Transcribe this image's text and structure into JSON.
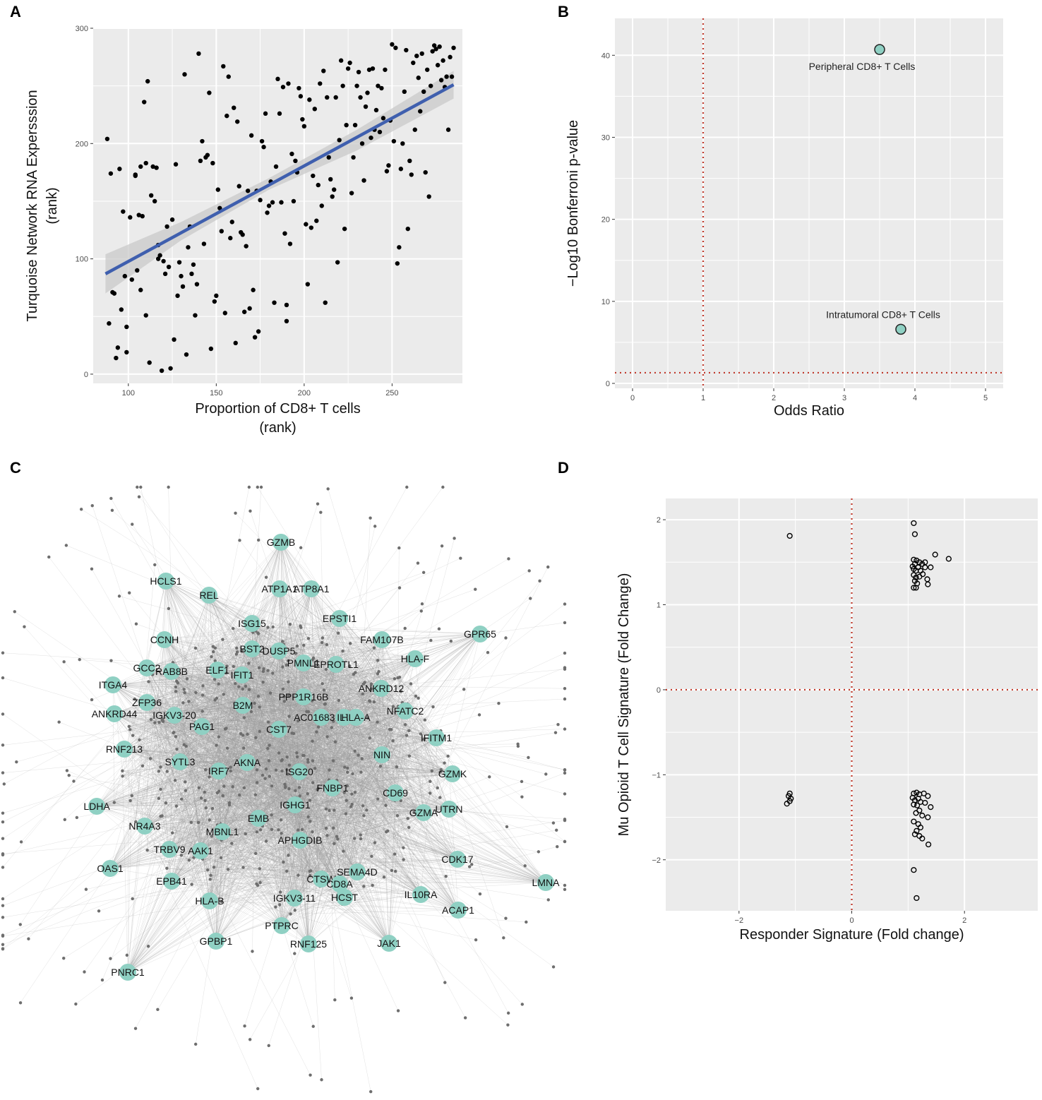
{
  "panel_labels": {
    "a": "A",
    "b": "B",
    "c": "C",
    "d": "D"
  },
  "colors": {
    "regression": "#3f5fae",
    "ci_band": "#c9c9c9",
    "node_fill": "#8fd0c3",
    "reference_line": "#c0392b",
    "edge": "#9a9a9a"
  },
  "chart_data": [
    {
      "id": "A",
      "type": "scatter",
      "xlabel": "Proportion of CD8+ T cells",
      "xlabel2": "(rank)",
      "ylabel": "Turquoise Network RNA Expersssion",
      "ylabel2": "(rank)",
      "xlim": [
        80,
        290
      ],
      "ylim": [
        -8,
        300
      ],
      "xticks": [
        100,
        150,
        200,
        250
      ],
      "yticks": [
        0,
        100,
        200,
        300
      ],
      "grid": true,
      "trend_line": {
        "x": [
          87,
          285
        ],
        "y": [
          87,
          251
        ]
      },
      "confidence_band": {
        "x": [
          87,
          130,
          180,
          230,
          285
        ],
        "upper": [
          104,
          132,
          170,
          212,
          263
        ],
        "lower": [
          70,
          116,
          160,
          194,
          239
        ]
      },
      "points": [
        [
          88,
          204
        ],
        [
          89,
          44
        ],
        [
          90,
          174
        ],
        [
          91,
          71
        ],
        [
          92,
          70
        ],
        [
          93,
          14
        ],
        [
          94,
          23
        ],
        [
          95,
          178
        ],
        [
          96,
          56
        ],
        [
          97,
          141
        ],
        [
          98,
          85
        ],
        [
          99,
          41
        ],
        [
          99,
          19
        ],
        [
          101,
          136
        ],
        [
          102,
          82
        ],
        [
          104,
          172
        ],
        [
          104,
          173
        ],
        [
          105,
          90
        ],
        [
          106,
          138
        ],
        [
          107,
          73
        ],
        [
          107,
          180
        ],
        [
          108,
          137
        ],
        [
          109,
          236
        ],
        [
          110,
          51
        ],
        [
          110,
          183
        ],
        [
          111,
          254
        ],
        [
          112,
          10
        ],
        [
          113,
          155
        ],
        [
          114,
          180
        ],
        [
          115,
          150
        ],
        [
          116,
          179
        ],
        [
          117,
          112
        ],
        [
          117,
          100
        ],
        [
          118,
          103
        ],
        [
          119,
          3
        ],
        [
          120,
          98
        ],
        [
          121,
          87
        ],
        [
          122,
          128
        ],
        [
          123,
          93
        ],
        [
          124,
          5
        ],
        [
          125,
          134
        ],
        [
          126,
          30
        ],
        [
          127,
          182
        ],
        [
          128,
          68
        ],
        [
          129,
          97
        ],
        [
          130,
          85
        ],
        [
          131,
          76
        ],
        [
          132,
          260
        ],
        [
          133,
          17
        ],
        [
          134,
          110
        ],
        [
          135,
          128
        ],
        [
          136,
          87
        ],
        [
          137,
          95
        ],
        [
          138,
          51
        ],
        [
          139,
          78
        ],
        [
          140,
          278
        ],
        [
          141,
          185
        ],
        [
          142,
          202
        ],
        [
          143,
          113
        ],
        [
          144,
          188
        ],
        [
          145,
          190
        ],
        [
          146,
          244
        ],
        [
          147,
          22
        ],
        [
          148,
          183
        ],
        [
          149,
          63
        ],
        [
          150,
          68
        ],
        [
          151,
          160
        ],
        [
          152,
          144
        ],
        [
          153,
          124
        ],
        [
          154,
          267
        ],
        [
          155,
          53
        ],
        [
          156,
          224
        ],
        [
          157,
          258
        ],
        [
          158,
          118
        ],
        [
          159,
          132
        ],
        [
          160,
          231
        ],
        [
          161,
          27
        ],
        [
          162,
          219
        ],
        [
          163,
          163
        ],
        [
          164,
          123
        ],
        [
          165,
          121
        ],
        [
          166,
          54
        ],
        [
          167,
          111
        ],
        [
          168,
          159
        ],
        [
          169,
          57
        ],
        [
          170,
          207
        ],
        [
          171,
          73
        ],
        [
          172,
          32
        ],
        [
          173,
          159
        ],
        [
          174,
          37
        ],
        [
          175,
          151
        ],
        [
          176,
          202
        ],
        [
          177,
          197
        ],
        [
          178,
          226
        ],
        [
          179,
          140
        ],
        [
          180,
          146
        ],
        [
          181,
          167
        ],
        [
          182,
          149
        ],
        [
          183,
          62
        ],
        [
          184,
          180
        ],
        [
          185,
          256
        ],
        [
          186,
          226
        ],
        [
          187,
          149
        ],
        [
          188,
          249
        ],
        [
          189,
          122
        ],
        [
          190,
          60
        ],
        [
          190,
          46
        ],
        [
          191,
          252
        ],
        [
          192,
          113
        ],
        [
          193,
          191
        ],
        [
          194,
          150
        ],
        [
          195,
          185
        ],
        [
          196,
          175
        ],
        [
          197,
          248
        ],
        [
          198,
          241
        ],
        [
          199,
          221
        ],
        [
          200,
          215
        ],
        [
          201,
          130
        ],
        [
          202,
          78
        ],
        [
          203,
          238
        ],
        [
          204,
          127
        ],
        [
          205,
          172
        ],
        [
          206,
          230
        ],
        [
          207,
          133
        ],
        [
          208,
          164
        ],
        [
          209,
          252
        ],
        [
          210,
          146
        ],
        [
          211,
          263
        ],
        [
          212,
          62
        ],
        [
          213,
          240
        ],
        [
          214,
          188
        ],
        [
          215,
          169
        ],
        [
          216,
          154
        ],
        [
          217,
          160
        ],
        [
          218,
          240
        ],
        [
          219,
          97
        ],
        [
          220,
          203
        ],
        [
          221,
          272
        ],
        [
          222,
          250
        ],
        [
          223,
          126
        ],
        [
          224,
          216
        ],
        [
          225,
          265
        ],
        [
          226,
          270
        ],
        [
          227,
          157
        ],
        [
          228,
          188
        ],
        [
          229,
          216
        ],
        [
          230,
          250
        ],
        [
          231,
          262
        ],
        [
          232,
          240
        ],
        [
          233,
          200
        ],
        [
          234,
          168
        ],
        [
          235,
          232
        ],
        [
          236,
          244
        ],
        [
          237,
          264
        ],
        [
          238,
          205
        ],
        [
          239,
          265
        ],
        [
          240,
          212
        ],
        [
          241,
          229
        ],
        [
          242,
          250
        ],
        [
          243,
          210
        ],
        [
          244,
          248
        ],
        [
          245,
          222
        ],
        [
          246,
          264
        ],
        [
          247,
          176
        ],
        [
          248,
          181
        ],
        [
          249,
          220
        ],
        [
          250,
          286
        ],
        [
          251,
          202
        ],
        [
          252,
          283
        ],
        [
          253,
          96
        ],
        [
          254,
          110
        ],
        [
          255,
          178
        ],
        [
          256,
          200
        ],
        [
          257,
          245
        ],
        [
          258,
          281
        ],
        [
          259,
          126
        ],
        [
          260,
          185
        ],
        [
          261,
          173
        ],
        [
          262,
          270
        ],
        [
          263,
          212
        ],
        [
          264,
          276
        ],
        [
          265,
          257
        ],
        [
          266,
          228
        ],
        [
          267,
          278
        ],
        [
          268,
          245
        ],
        [
          269,
          175
        ],
        [
          270,
          264
        ],
        [
          271,
          154
        ],
        [
          272,
          250
        ],
        [
          273,
          280
        ],
        [
          274,
          285
        ],
        [
          275,
          282
        ],
        [
          276,
          268
        ],
        [
          277,
          284
        ],
        [
          278,
          255
        ],
        [
          279,
          272
        ],
        [
          280,
          249
        ],
        [
          281,
          258
        ],
        [
          282,
          212
        ],
        [
          283,
          275
        ],
        [
          284,
          258
        ],
        [
          285,
          283
        ]
      ]
    },
    {
      "id": "B",
      "type": "scatter",
      "xlabel": "Odds Ratio",
      "ylabel": "−Log10 Bonferroni p-value",
      "xlim": [
        -0.25,
        5.25
      ],
      "ylim": [
        -0.6,
        44.5
      ],
      "xticks": [
        0,
        1,
        2,
        3,
        4,
        5
      ],
      "yticks": [
        0,
        10,
        20,
        30,
        40
      ],
      "grid": true,
      "reference_lines": {
        "x": [
          1
        ],
        "y": [
          1.3
        ]
      },
      "points": [
        {
          "label": "Peripheral CD8+ T Cells",
          "x": 3.5,
          "y": 40.7
        },
        {
          "label": "Intratumoral CD8+ T Cells",
          "x": 3.8,
          "y": 6.6
        }
      ]
    },
    {
      "id": "C",
      "type": "network",
      "nodes": [
        "GZMB",
        "HCLS1",
        "REL",
        "ATP1A1",
        "ATP8A1",
        "ISG15",
        "EPSTI1",
        "CCNH",
        "GPR65",
        "FAM107B",
        "BST2",
        "DUSP5",
        "GCC2",
        "RAB8B",
        "ELF1",
        "IFIT1",
        "PMNL1",
        "EPROTL1",
        "HLA-F",
        "ITGA4",
        "ANKRD12",
        "PPP1R16B",
        "ZFP36",
        "B2M",
        "ANKRD44",
        "IGKV3-20",
        "AC016831.7",
        "IL7",
        "HLA-A",
        "NFATC2",
        "PAG1",
        "CST7",
        "RNF213",
        "IFITM1",
        "SYTL3",
        "AKNA",
        "NIN",
        "IRF7",
        "ISG20",
        "GZMK",
        "FNBP1",
        "CD69",
        "LDHA",
        "IGHG1",
        "EMB",
        "GZMA",
        "UTRN",
        "NR4A3",
        "MBNL1",
        "APHGDIB",
        "TRBV9",
        "AAK1",
        "CDK17",
        "OAS1",
        "SEMA4D",
        "CTSW",
        "CD8A",
        "EPB41",
        "LMNA",
        "HCST",
        "IL10RA",
        "HLA-B",
        "IGKV3-11",
        "ACAP1",
        "PTPRC",
        "GPBP1",
        "RNF125",
        "JAK1",
        "PNRC1"
      ],
      "node_labels": [
        "GZMB",
        "HCLS1",
        "REL",
        "ATP1A1",
        "ATP8A1",
        "ISG15",
        "EPSTI1",
        "CCNH",
        "GPR65",
        "FAM107B",
        "BST2",
        "DUSP5",
        "GCC2",
        "RAB8B",
        "ELF1",
        "IFIT1",
        "PMNL1",
        "EPROTL1",
        "HLA-F",
        "ITGA4",
        "ANKRD12",
        "PPP1R16B",
        "ZFP36",
        "B2M",
        "ANKRD44",
        "IGKV3-20",
        "AC016831.7",
        "IL7",
        "HLA-A",
        "NFATC2",
        "PAG1",
        "CST7",
        "RNF213",
        "IFITM1",
        "SYTL3",
        "AKNA",
        "NIN",
        "IRF7",
        "ISG20",
        "GZMK",
        "FNBP1",
        "CD69",
        "LDHA",
        "IGHG1",
        "EMB",
        "GZMA",
        "UTRN",
        "NR4A3",
        "MBNL1",
        "APHGDIB",
        "TRBV9",
        "AAK1",
        "CDK17",
        "OAS1",
        "SEMA4D",
        "CTSW",
        "CD8A",
        "EPB41",
        "LMNA",
        "HCST",
        "IL10RA",
        "HLA-B",
        "IGKV3-11",
        "ACAP1",
        "PTPRC",
        "GPBP1",
        "RNF125",
        "JAK1",
        "PNRC1"
      ]
    },
    {
      "id": "D",
      "type": "scatter",
      "xlabel": "Responder Signature (Fold change)",
      "ylabel": "Mu Opioid T Cell Signature (Fold Change)",
      "xlim": [
        -3.3,
        3.3
      ],
      "ylim": [
        -2.6,
        2.25
      ],
      "xticks": [
        -2,
        0,
        2
      ],
      "yticks": [
        -2,
        -1,
        0,
        1,
        2
      ],
      "grid": true,
      "reference_lines": {
        "x": [
          0
        ],
        "y": [
          0
        ]
      },
      "points": [
        [
          -1.1,
          1.81
        ],
        [
          1.1,
          1.96
        ],
        [
          1.12,
          1.83
        ],
        [
          1.1,
          1.53
        ],
        [
          1.15,
          1.52
        ],
        [
          1.12,
          1.48
        ],
        [
          1.08,
          1.45
        ],
        [
          1.2,
          1.5
        ],
        [
          1.25,
          1.48
        ],
        [
          1.3,
          1.5
        ],
        [
          1.1,
          1.42
        ],
        [
          1.14,
          1.4
        ],
        [
          1.18,
          1.44
        ],
        [
          1.22,
          1.4
        ],
        [
          1.3,
          1.44
        ],
        [
          1.4,
          1.44
        ],
        [
          1.48,
          1.59
        ],
        [
          1.72,
          1.54
        ],
        [
          1.1,
          1.35
        ],
        [
          1.14,
          1.32
        ],
        [
          1.2,
          1.33
        ],
        [
          1.26,
          1.36
        ],
        [
          1.34,
          1.3
        ],
        [
          1.12,
          1.28
        ],
        [
          1.16,
          1.25
        ],
        [
          1.35,
          1.24
        ],
        [
          1.1,
          1.2
        ],
        [
          1.14,
          1.2
        ],
        [
          -1.1,
          -1.22
        ],
        [
          -1.12,
          -1.25
        ],
        [
          -1.08,
          -1.28
        ],
        [
          -1.15,
          -1.34
        ],
        [
          -1.1,
          -1.31
        ],
        [
          1.1,
          -1.22
        ],
        [
          1.15,
          -1.21
        ],
        [
          1.2,
          -1.23
        ],
        [
          1.28,
          -1.22
        ],
        [
          1.35,
          -1.25
        ],
        [
          1.08,
          -1.27
        ],
        [
          1.12,
          -1.3
        ],
        [
          1.18,
          -1.28
        ],
        [
          1.22,
          -1.32
        ],
        [
          1.1,
          -1.35
        ],
        [
          1.16,
          -1.36
        ],
        [
          1.3,
          -1.33
        ],
        [
          1.4,
          -1.38
        ],
        [
          1.2,
          -1.42
        ],
        [
          1.14,
          -1.45
        ],
        [
          1.25,
          -1.48
        ],
        [
          1.35,
          -1.5
        ],
        [
          1.1,
          -1.55
        ],
        [
          1.18,
          -1.58
        ],
        [
          1.22,
          -1.62
        ],
        [
          1.15,
          -1.66
        ],
        [
          1.12,
          -1.7
        ],
        [
          1.2,
          -1.72
        ],
        [
          1.25,
          -1.75
        ],
        [
          1.36,
          -1.82
        ],
        [
          1.1,
          -2.12
        ],
        [
          1.15,
          -2.45
        ]
      ]
    }
  ]
}
